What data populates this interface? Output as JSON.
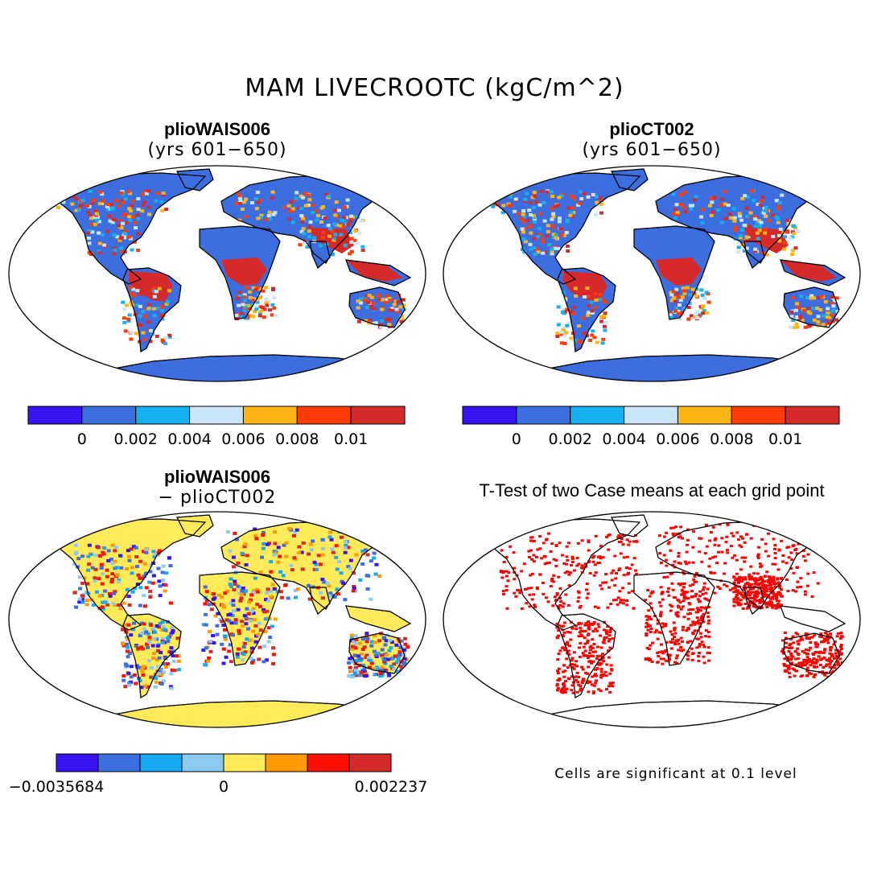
{
  "title": "MAM LIVECROOTC (kgC/m^2)",
  "panels": [
    {
      "title": "plioWAIS006",
      "subtitle": "(yrs 601−650)"
    },
    {
      "title": "plioCT002",
      "subtitle": "(yrs 601−650)"
    },
    {
      "title": "plioWAIS006",
      "subtitle": "− plioCT002"
    },
    {
      "title": "T-Test of two Case means at each grid point",
      "subtitle": ""
    }
  ],
  "colorbar_top": {
    "colors": [
      "#3a14f0",
      "#3c6ee0",
      "#16b0f0",
      "#c8e6f8",
      "#fdb515",
      "#fe3c0a",
      "#d62a2a"
    ],
    "labels": [
      "0",
      "0.002",
      "0.004",
      "0.006",
      "0.008",
      "0.01"
    ]
  },
  "colorbar_diff": {
    "colors": [
      "#3a14f0",
      "#3c6ee0",
      "#16a8f0",
      "#8ccaf0",
      "#ffeb5a",
      "#fe9a00",
      "#fe1000",
      "#d62a2a"
    ],
    "labels": [
      "−0.0035684",
      "0",
      "0.002237"
    ]
  },
  "note": "Cells are significant at 0.1 level",
  "colors": {
    "land_base": "#3c6ee0",
    "tropics": "#d62a2a",
    "diff_base": "#ffeb5a",
    "signif": "#ff0000"
  }
}
